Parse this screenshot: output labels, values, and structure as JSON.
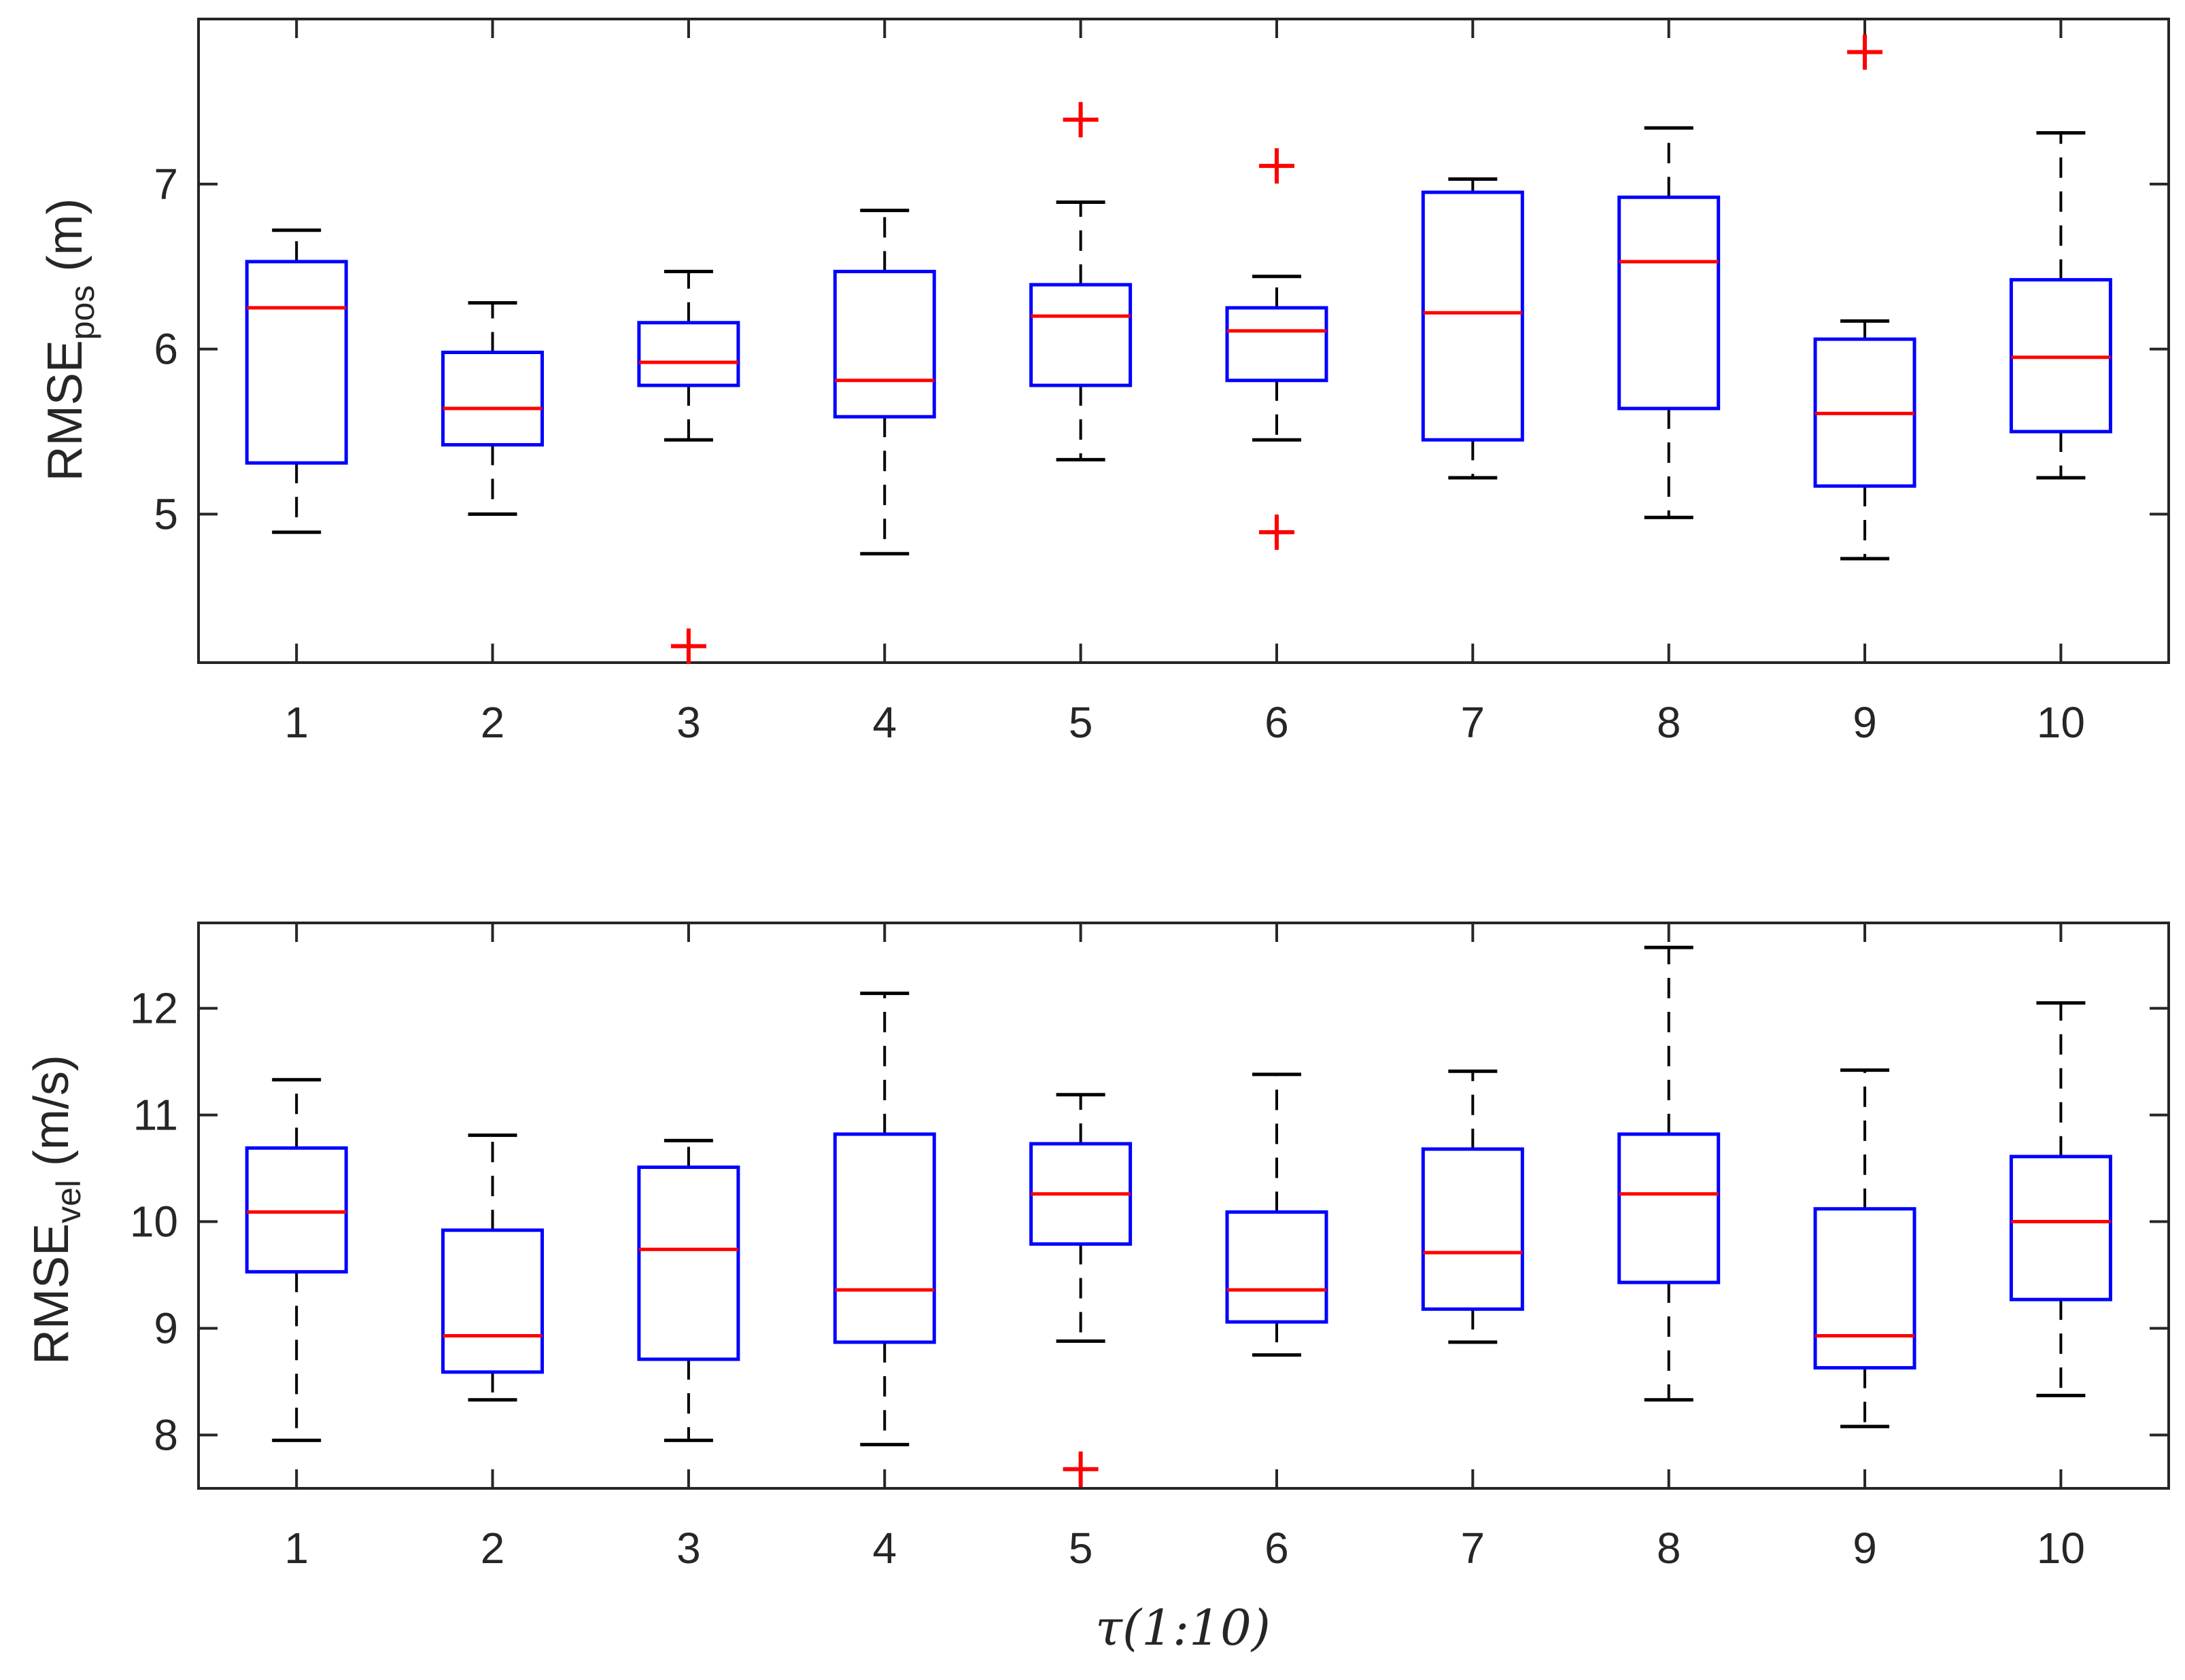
{
  "chart_data": [
    {
      "type": "boxplot",
      "ylabel": "RMSE",
      "ylabel_subscript": "pos",
      "ylabel_unit": " (m)",
      "xlabel": "",
      "categories": [
        "1",
        "2",
        "3",
        "4",
        "5",
        "6",
        "7",
        "8",
        "9",
        "10"
      ],
      "ylim": [
        4.1,
        8.0
      ],
      "yticks": [
        5,
        6,
        7
      ],
      "grid": false,
      "boxes": [
        {
          "q1": 5.31,
          "median": 6.25,
          "q3": 6.53,
          "whisker_low": 4.89,
          "whisker_high": 6.72,
          "outliers": []
        },
        {
          "q1": 5.42,
          "median": 5.64,
          "q3": 5.98,
          "whisker_low": 5.0,
          "whisker_high": 6.28,
          "outliers": []
        },
        {
          "q1": 5.78,
          "median": 5.92,
          "q3": 6.16,
          "whisker_low": 5.45,
          "whisker_high": 6.47,
          "outliers": [
            4.2
          ]
        },
        {
          "q1": 5.59,
          "median": 5.81,
          "q3": 6.47,
          "whisker_low": 4.76,
          "whisker_high": 6.84,
          "outliers": []
        },
        {
          "q1": 5.78,
          "median": 6.2,
          "q3": 6.39,
          "whisker_low": 5.33,
          "whisker_high": 6.89,
          "outliers": [
            7.39
          ]
        },
        {
          "q1": 5.81,
          "median": 6.11,
          "q3": 6.25,
          "whisker_low": 5.45,
          "whisker_high": 6.44,
          "outliers": [
            7.11,
            4.89
          ]
        },
        {
          "q1": 5.45,
          "median": 6.22,
          "q3": 6.95,
          "whisker_low": 5.22,
          "whisker_high": 7.03,
          "outliers": []
        },
        {
          "q1": 5.64,
          "median": 6.53,
          "q3": 6.92,
          "whisker_low": 4.98,
          "whisker_high": 7.34,
          "outliers": []
        },
        {
          "q1": 5.17,
          "median": 5.61,
          "q3": 6.06,
          "whisker_low": 4.73,
          "whisker_high": 6.17,
          "outliers": [
            7.8
          ]
        },
        {
          "q1": 5.5,
          "median": 5.95,
          "q3": 6.42,
          "whisker_low": 5.22,
          "whisker_high": 7.31,
          "outliers": []
        }
      ]
    },
    {
      "type": "boxplot",
      "ylabel": "RMSE",
      "ylabel_subscript": "vel",
      "ylabel_unit": " (m/s)",
      "xlabel": "τ(1:10)",
      "categories": [
        "1",
        "2",
        "3",
        "4",
        "5",
        "6",
        "7",
        "8",
        "9",
        "10"
      ],
      "ylim": [
        7.5,
        12.8
      ],
      "yticks": [
        8,
        9,
        10,
        11,
        12
      ],
      "grid": false,
      "boxes": [
        {
          "q1": 9.53,
          "median": 10.09,
          "q3": 10.69,
          "whisker_low": 7.95,
          "whisker_high": 11.33,
          "outliers": []
        },
        {
          "q1": 8.59,
          "median": 8.93,
          "q3": 9.92,
          "whisker_low": 8.33,
          "whisker_high": 10.81,
          "outliers": []
        },
        {
          "q1": 8.71,
          "median": 9.74,
          "q3": 10.51,
          "whisker_low": 7.95,
          "whisker_high": 10.76,
          "outliers": []
        },
        {
          "q1": 8.87,
          "median": 9.36,
          "q3": 10.82,
          "whisker_low": 7.91,
          "whisker_high": 12.14,
          "outliers": []
        },
        {
          "q1": 9.79,
          "median": 10.26,
          "q3": 10.73,
          "whisker_low": 8.88,
          "whisker_high": 11.19,
          "outliers": [
            7.68
          ]
        },
        {
          "q1": 9.06,
          "median": 9.36,
          "q3": 10.09,
          "whisker_low": 8.75,
          "whisker_high": 11.38,
          "outliers": []
        },
        {
          "q1": 9.18,
          "median": 9.71,
          "q3": 10.68,
          "whisker_low": 8.87,
          "whisker_high": 11.41,
          "outliers": []
        },
        {
          "q1": 9.43,
          "median": 10.26,
          "q3": 10.82,
          "whisker_low": 8.33,
          "whisker_high": 12.57,
          "outliers": []
        },
        {
          "q1": 8.63,
          "median": 8.93,
          "q3": 10.12,
          "whisker_low": 8.08,
          "whisker_high": 11.42,
          "outliers": []
        },
        {
          "q1": 9.27,
          "median": 10.0,
          "q3": 10.61,
          "whisker_low": 8.37,
          "whisker_high": 12.05,
          "outliers": []
        }
      ]
    }
  ],
  "colors": {
    "box": "#0000ff",
    "median": "#ff0000",
    "whisker": "#000000",
    "outlier": "#ff0000",
    "axis": "#262626"
  }
}
